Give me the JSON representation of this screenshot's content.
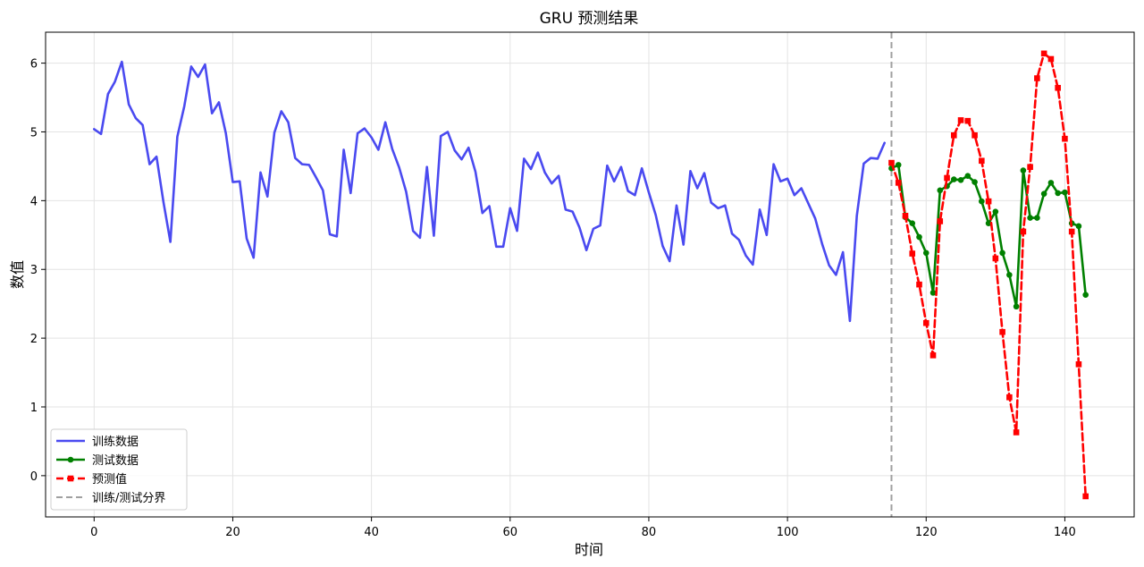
{
  "chart_data": {
    "type": "line",
    "title": "GRU 预测结果",
    "xlabel": "时间",
    "ylabel": "数值",
    "xlim": [
      -7,
      150
    ],
    "ylim": [
      -0.6,
      6.45
    ],
    "xticks": [
      0,
      20,
      40,
      60,
      80,
      100,
      120,
      140
    ],
    "yticks": [
      0,
      1,
      2,
      3,
      4,
      5,
      6
    ],
    "grid": true,
    "legend_position": "lower-left",
    "split_x": 115,
    "series": [
      {
        "name": "训练数据",
        "color": "#4a4af0",
        "style": "solid",
        "marker": "none",
        "x_start": 0,
        "values": [
          5.04,
          4.97,
          5.55,
          5.73,
          6.02,
          5.4,
          5.2,
          5.1,
          4.53,
          4.64,
          3.98,
          3.4,
          4.93,
          5.37,
          5.95,
          5.8,
          5.98,
          5.27,
          5.43,
          4.98,
          4.27,
          4.28,
          3.45,
          3.17,
          4.41,
          4.06,
          4.99,
          5.3,
          5.14,
          4.62,
          4.53,
          4.52,
          4.34,
          4.15,
          3.51,
          3.48,
          4.74,
          4.11,
          4.98,
          5.05,
          4.92,
          4.74,
          5.14,
          4.75,
          4.48,
          4.13,
          3.56,
          3.46,
          4.49,
          3.49,
          4.94,
          5.0,
          4.73,
          4.6,
          4.77,
          4.42,
          3.82,
          3.92,
          3.33,
          3.33,
          3.89,
          3.56,
          4.61,
          4.46,
          4.7,
          4.41,
          4.25,
          4.36,
          3.87,
          3.84,
          3.61,
          3.28,
          3.59,
          3.64,
          4.51,
          4.28,
          4.49,
          4.14,
          4.08,
          4.47,
          4.12,
          3.79,
          3.34,
          3.12,
          3.93,
          3.36,
          4.43,
          4.18,
          4.4,
          3.97,
          3.89,
          3.93,
          3.52,
          3.43,
          3.2,
          3.07,
          3.87,
          3.5,
          4.53,
          4.28,
          4.32,
          4.08,
          4.18,
          3.96,
          3.74,
          3.37,
          3.06,
          2.92,
          3.25,
          2.25,
          3.78,
          4.54,
          4.62,
          4.61,
          4.84
        ]
      },
      {
        "name": "测试数据",
        "color": "#008000",
        "style": "solid",
        "marker": "circle",
        "x_start": 115,
        "values": [
          4.47,
          4.52,
          3.76,
          3.67,
          3.47,
          3.24,
          2.66,
          4.15,
          4.21,
          4.31,
          4.3,
          4.36,
          4.27,
          3.99,
          3.67,
          3.84,
          3.24,
          2.92,
          2.46,
          4.44,
          3.75,
          3.75,
          4.1,
          4.26,
          4.11,
          4.12,
          3.67,
          3.63,
          2.63
        ]
      },
      {
        "name": "预测值",
        "color": "#ff0000",
        "style": "dashed",
        "marker": "square",
        "x_start": 115,
        "values": [
          4.55,
          4.26,
          3.78,
          3.23,
          2.78,
          2.22,
          1.75,
          3.7,
          4.33,
          4.95,
          5.17,
          5.16,
          4.95,
          4.58,
          3.99,
          3.16,
          2.09,
          1.14,
          0.63,
          3.55,
          4.49,
          5.78,
          6.14,
          6.06,
          5.64,
          4.9,
          3.55,
          1.62,
          -0.3
        ]
      },
      {
        "name": "训练/测试分界",
        "color": "#a0a0a0",
        "style": "dashed-vertical",
        "marker": "none"
      }
    ]
  }
}
